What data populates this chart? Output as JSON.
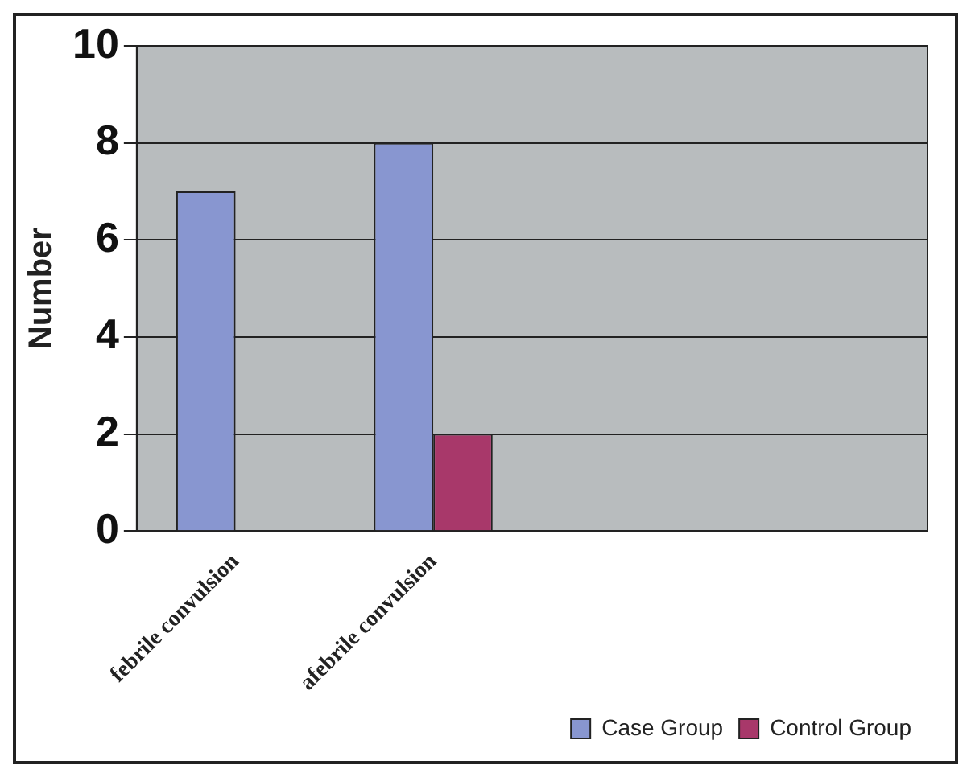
{
  "chart_data": {
    "type": "bar",
    "ylabel": "Number",
    "categories": [
      "febrile convulsion",
      "afebrile convulsion",
      null,
      null
    ],
    "series": [
      {
        "name": "Case Group",
        "color": "#8896d0",
        "values": [
          7,
          8,
          null,
          null
        ]
      },
      {
        "name": "Control Group",
        "color": "#a8386a",
        "values": [
          0,
          2,
          null,
          null
        ]
      }
    ],
    "ylim": [
      0,
      10
    ],
    "yticks": [
      0,
      2,
      4,
      6,
      8,
      10
    ],
    "grid": "y",
    "legend": "bottom right"
  }
}
